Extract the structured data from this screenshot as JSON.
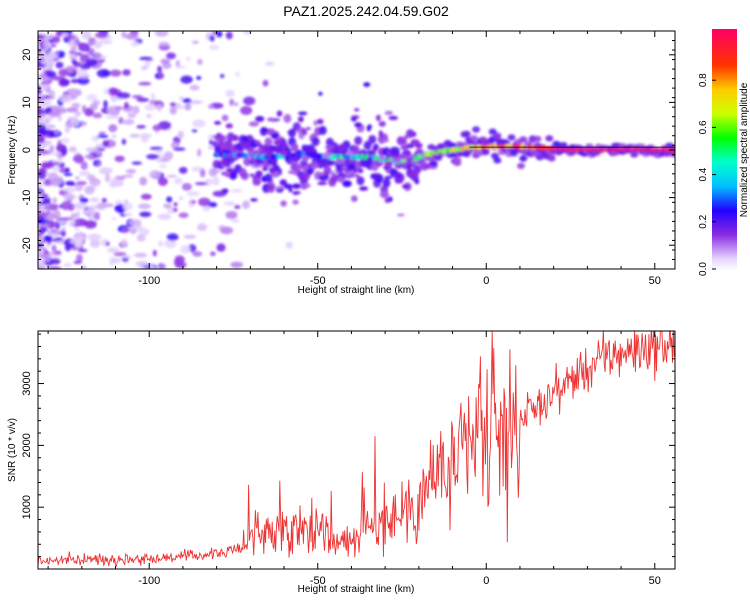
{
  "figure": {
    "title": "PAZ1.2025.242.04.59.G02"
  },
  "chart_data": [
    {
      "type": "heatmap",
      "name": "spectrogram",
      "xlabel": "Height of straight line (km)",
      "ylabel": "Frequency (Hz)",
      "xlim": [
        -133,
        56
      ],
      "ylim": [
        -25,
        25
      ],
      "x_ticks": [
        -100,
        -50,
        0,
        50
      ],
      "y_ticks": [
        -20,
        -10,
        0,
        10,
        20
      ],
      "x_tick_labels": [
        "-100",
        "-50",
        "0",
        "50"
      ],
      "y_tick_labels": [
        "-20",
        "-10",
        "0",
        "10",
        "20"
      ],
      "colorbar": {
        "label": "Normalized spectral amplitude",
        "range": [
          0,
          1
        ],
        "ticks": [
          0,
          0.2,
          0.4,
          0.6,
          0.8
        ],
        "tick_labels": [
          "0.0",
          "0.2",
          "0.4",
          "0.6",
          "0.8"
        ]
      },
      "ridge": {
        "description": "dominant frequency trace",
        "x": [
          -75,
          -65,
          -55,
          -45,
          -35,
          -25,
          -15,
          -5,
          5,
          15,
          25,
          35,
          45,
          56
        ],
        "y": [
          -1,
          -1.5,
          -1,
          -1.5,
          -1.5,
          -2.5,
          -0.5,
          0.5,
          0.8,
          0.5,
          0,
          0,
          0,
          0
        ],
        "amplitude": [
          0.25,
          0.3,
          0.3,
          0.4,
          0.45,
          0.5,
          0.6,
          0.7,
          0.8,
          0.85,
          0.9,
          0.92,
          0.95,
          0.95
        ]
      }
    },
    {
      "type": "line",
      "name": "snr",
      "xlabel": "Height of straight line (km)",
      "ylabel": "SNR (10 * v/v)",
      "xlim": [
        -133,
        56
      ],
      "ylim": [
        0,
        3850
      ],
      "x_ticks": [
        -100,
        -50,
        0,
        50
      ],
      "y_ticks": [
        1000,
        2000,
        3000
      ],
      "x_tick_labels": [
        "-100",
        "-50",
        "0",
        "50"
      ],
      "y_tick_labels": [
        "1000",
        "2000",
        "3000"
      ],
      "color": "#ee3333",
      "series": [
        {
          "name": "SNR",
          "x": [
            -133,
            -120,
            -110,
            -100,
            -90,
            -80,
            -75,
            -72,
            -70,
            -65,
            -60,
            -55,
            -50,
            -45,
            -40,
            -35,
            -30,
            -25,
            -20,
            -15,
            -10,
            -5,
            0,
            5,
            10,
            15,
            20,
            25,
            30,
            35,
            40,
            45,
            50,
            56
          ],
          "y": [
            130,
            150,
            160,
            170,
            200,
            250,
            300,
            350,
            550,
            600,
            650,
            700,
            650,
            450,
            500,
            650,
            800,
            900,
            1200,
            1500,
            1600,
            1900,
            2100,
            2200,
            2450,
            2600,
            2850,
            3050,
            3250,
            3400,
            3500,
            3550,
            3600,
            3650
          ]
        }
      ]
    }
  ]
}
